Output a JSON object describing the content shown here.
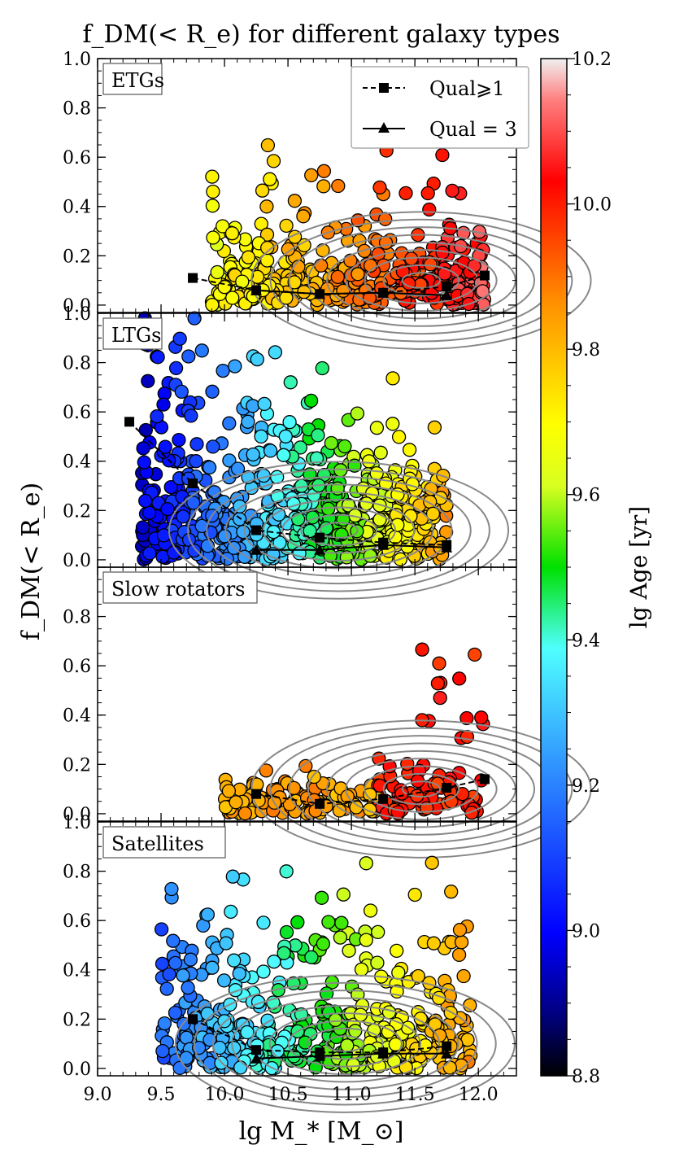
{
  "figure": {
    "title": "f_DM(< R_e) for different galaxy types",
    "xlabel": "lg M_* [M_⊙]",
    "ylabel": "f_DM(< R_e)",
    "colorbar_label": "lg Age [yr]"
  },
  "chart_data": {
    "type": "scatter",
    "xlim": [
      9.0,
      12.3
    ],
    "ylim": [
      -0.03,
      1.0
    ],
    "xticks": [
      "9.0",
      "9.5",
      "10.0",
      "10.5",
      "11.0",
      "11.5",
      "12.0"
    ],
    "yticks": [
      "0.0",
      "0.2",
      "0.4",
      "0.6",
      "0.8",
      "1.0"
    ],
    "colorbar": {
      "range": [
        8.8,
        10.2
      ],
      "ticks": [
        "8.8",
        "9.0",
        "9.2",
        "9.4",
        "9.6",
        "9.8",
        "10.0",
        "10.2"
      ],
      "colormap": "jet"
    },
    "legend": {
      "placement": "top-right of first panel",
      "entries": [
        {
          "label": "Qual⩾1",
          "style": "dashed",
          "marker": "square",
          "color": "#000000"
        },
        {
          "label": "Qual = 3",
          "style": "solid",
          "marker": "triangle",
          "color": "#000000"
        }
      ]
    },
    "panels": [
      {
        "label": "ETGs",
        "series": [
          {
            "name": "Qual⩾1",
            "x": [
              9.75,
              10.25,
              10.75,
              11.25,
              11.75,
              12.05
            ],
            "y": [
              0.11,
              0.06,
              0.045,
              0.05,
              0.075,
              0.12
            ]
          },
          {
            "name": "Qual = 3",
            "x": [
              10.25,
              10.75,
              11.25,
              11.75
            ],
            "y": [
              0.06,
              0.045,
              0.05,
              0.04
            ]
          }
        ]
      },
      {
        "label": "LTGs",
        "series": [
          {
            "name": "Qual⩾1",
            "x": [
              9.25,
              9.75,
              10.25,
              10.75,
              11.25,
              11.75
            ],
            "y": [
              0.56,
              0.31,
              0.12,
              0.09,
              0.07,
              0.06
            ]
          },
          {
            "name": "Qual = 3",
            "x": [
              10.25,
              10.75,
              11.25,
              11.75
            ],
            "y": [
              0.04,
              0.04,
              0.06,
              0.05
            ]
          }
        ]
      },
      {
        "label": "Slow rotators",
        "series": [
          {
            "name": "Qual⩾1",
            "x": [
              10.25,
              10.75,
              11.25,
              11.75,
              12.05
            ],
            "y": [
              0.08,
              0.04,
              0.06,
              0.105,
              0.14
            ]
          }
        ]
      },
      {
        "label": "Satellites",
        "series": [
          {
            "name": "Qual⩾1",
            "x": [
              9.75,
              10.25,
              10.75,
              11.25,
              11.75
            ],
            "y": [
              0.2,
              0.075,
              0.065,
              0.065,
              0.09
            ]
          },
          {
            "name": "Qual = 3",
            "x": [
              10.25,
              10.75,
              11.25,
              11.75
            ],
            "y": [
              0.04,
              0.05,
              0.06,
              0.06
            ]
          }
        ]
      }
    ]
  }
}
